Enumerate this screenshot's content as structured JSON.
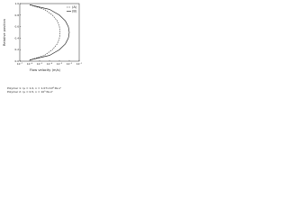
{
  "chart_data": {
    "type": "line",
    "xlabel": "Flow velocity (m/s)",
    "ylabel": "Relative position",
    "xscale": "log",
    "xlim": [
      1e-07,
      0.1
    ],
    "xticks": [
      {
        "value": 1e-07,
        "label": "10⁻⁷"
      },
      {
        "value": 1e-06,
        "label": "10⁻⁶"
      },
      {
        "value": 1e-05,
        "label": "10⁻⁵"
      },
      {
        "value": 0.0001,
        "label": "10⁻⁴"
      },
      {
        "value": 0.001,
        "label": "10⁻³"
      },
      {
        "value": 0.01,
        "label": "10⁻²"
      },
      {
        "value": 0.1,
        "label": "10⁻¹"
      }
    ],
    "ylim": [
      0,
      1
    ],
    "yticks": [
      {
        "value": 0,
        "label": "0.0"
      },
      {
        "value": 0.2,
        "label": "0.2"
      },
      {
        "value": 0.4,
        "label": "0.4"
      },
      {
        "value": 0.6,
        "label": "0.6"
      },
      {
        "value": 0.8,
        "label": "0.8"
      },
      {
        "value": 1,
        "label": "1.0"
      }
    ],
    "legend_position": "upper right",
    "series": [
      {
        "name": "(A)",
        "color": "#333333",
        "dash": true,
        "x": [
          1e-06,
          3e-05,
          0.0002,
          0.0006,
          0.001,
          0.0012,
          0.001,
          0.0006,
          0.0002,
          3e-05,
          1e-06
        ],
        "values": [
          0.02,
          0.1,
          0.2,
          0.3,
          0.4,
          0.5,
          0.6,
          0.7,
          0.8,
          0.9,
          0.98
        ]
      },
      {
        "name": "(B)",
        "color": "#111111",
        "dash": false,
        "x": [
          1e-06,
          0.0001,
          0.001,
          0.004,
          0.008,
          0.01,
          0.008,
          0.004,
          0.001,
          0.0001,
          1e-06
        ],
        "values": [
          0.02,
          0.1,
          0.2,
          0.3,
          0.4,
          0.5,
          0.6,
          0.7,
          0.8,
          0.9,
          0.98
        ]
      }
    ],
    "caption": [
      "Polymer 1: η₀ = 1.0, n = 1.07×10⁴ Pa·sⁿ",
      "Polymer 2: η₀ = 0.5, n = 10⁵ Pa·sⁿ"
    ]
  }
}
